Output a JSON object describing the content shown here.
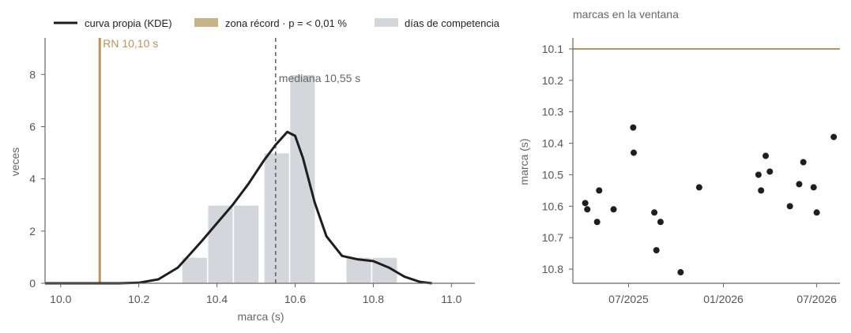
{
  "colors": {
    "kde": "#1e1e1e",
    "record": "#b7965a",
    "record_legend": "#c8b386",
    "hist": "#d3d7dc",
    "median": "#666666",
    "points": "#1e1e1e",
    "axis": "#666666"
  },
  "chart_data": [
    {
      "type": "histogram",
      "xlabel": "marca (s)",
      "ylabel": "veces",
      "xlim": [
        9.96,
        11.06
      ],
      "ylim": [
        0,
        9.4
      ],
      "xticks": [
        10.0,
        10.2,
        10.4,
        10.6,
        10.8,
        11.0
      ],
      "xtick_labels": [
        "10.0",
        "10.2",
        "10.4",
        "10.6",
        "10.8",
        "11.0"
      ],
      "yticks": [
        0,
        2,
        4,
        6,
        8
      ],
      "ytick_labels": [
        "0",
        "2",
        "4",
        "6",
        "8"
      ],
      "legend": {
        "placement": "top",
        "entries": [
          {
            "label": "curva propia (KDE)",
            "kind": "line",
            "color_key": "kde"
          },
          {
            "label": "zona récord · p = < 0,01 %",
            "kind": "patch",
            "color_key": "record_legend"
          },
          {
            "label": "días de competencia",
            "kind": "patch",
            "color_key": "hist"
          }
        ]
      },
      "bins": [
        {
          "x0": 10.31,
          "x1": 10.376,
          "count": 1
        },
        {
          "x0": 10.376,
          "x1": 10.442,
          "count": 3
        },
        {
          "x0": 10.442,
          "x1": 10.508,
          "count": 3
        },
        {
          "x0": 10.52,
          "x1": 10.586,
          "count": 5
        },
        {
          "x0": 10.586,
          "x1": 10.652,
          "count": 8
        },
        {
          "x0": 10.73,
          "x1": 10.796,
          "count": 1
        },
        {
          "x0": 10.796,
          "x1": 10.862,
          "count": 1
        }
      ],
      "kde": {
        "x": [
          9.96,
          10.05,
          10.1,
          10.15,
          10.2,
          10.25,
          10.3,
          10.33,
          10.36,
          10.4,
          10.44,
          10.48,
          10.52,
          10.55,
          10.58,
          10.6,
          10.62,
          10.65,
          10.68,
          10.72,
          10.76,
          10.8,
          10.84,
          10.88,
          10.92,
          10.95
        ],
        "y": [
          0.0,
          0.0,
          0.0,
          0.0,
          0.02,
          0.15,
          0.6,
          1.1,
          1.6,
          2.3,
          3.0,
          3.8,
          4.7,
          5.3,
          5.8,
          5.65,
          4.8,
          3.1,
          1.8,
          1.05,
          0.92,
          0.85,
          0.6,
          0.25,
          0.05,
          0.0
        ]
      },
      "record": {
        "x": 10.1,
        "label": "RN 10,10 s"
      },
      "median": {
        "x": 10.55,
        "label": "mediana 10,55 s"
      }
    },
    {
      "type": "scatter",
      "title": "marcas en la ventana",
      "ylabel": "marca (s)",
      "y_inverted": true,
      "xlim": [
        "2025-03-15",
        "2026-08-15"
      ],
      "ylim": [
        10.065,
        10.845
      ],
      "xticks": [
        "2025-07-01",
        "2026-01-01",
        "2026-07-01"
      ],
      "xtick_labels": [
        "07/2025",
        "01/2026",
        "07/2026"
      ],
      "yticks": [
        10.1,
        10.2,
        10.3,
        10.4,
        10.5,
        10.6,
        10.7,
        10.8
      ],
      "ytick_labels": [
        "10.1",
        "10.2",
        "10.3",
        "10.4",
        "10.5",
        "10.6",
        "10.7",
        "10.8"
      ],
      "record_line": 10.1,
      "points": [
        {
          "x": "2025-04-08",
          "y": 10.59
        },
        {
          "x": "2025-04-12",
          "y": 10.61
        },
        {
          "x": "2025-05-01",
          "y": 10.65
        },
        {
          "x": "2025-05-05",
          "y": 10.55
        },
        {
          "x": "2025-06-02",
          "y": 10.61
        },
        {
          "x": "2025-07-10",
          "y": 10.35
        },
        {
          "x": "2025-07-11",
          "y": 10.43
        },
        {
          "x": "2025-08-20",
          "y": 10.62
        },
        {
          "x": "2025-08-24",
          "y": 10.74
        },
        {
          "x": "2025-09-01",
          "y": 10.65
        },
        {
          "x": "2025-10-10",
          "y": 10.81
        },
        {
          "x": "2025-11-15",
          "y": 10.54
        },
        {
          "x": "2026-03-10",
          "y": 10.5
        },
        {
          "x": "2026-03-15",
          "y": 10.55
        },
        {
          "x": "2026-03-24",
          "y": 10.44
        },
        {
          "x": "2026-04-01",
          "y": 10.49
        },
        {
          "x": "2026-05-10",
          "y": 10.6
        },
        {
          "x": "2026-05-28",
          "y": 10.53
        },
        {
          "x": "2026-06-05",
          "y": 10.46
        },
        {
          "x": "2026-06-25",
          "y": 10.54
        },
        {
          "x": "2026-07-01",
          "y": 10.62
        },
        {
          "x": "2026-08-03",
          "y": 10.38
        }
      ]
    }
  ]
}
